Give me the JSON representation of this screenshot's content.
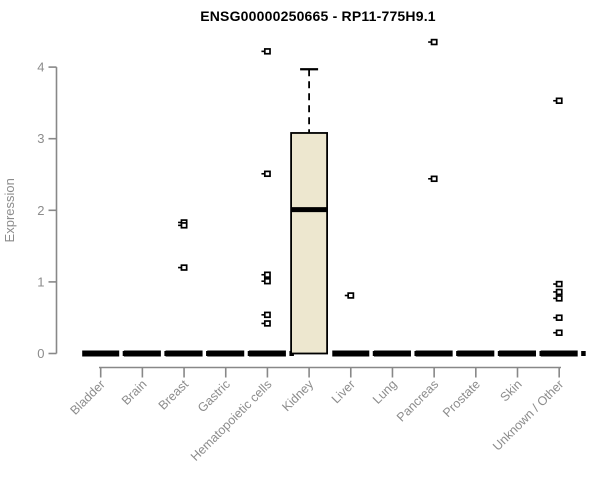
{
  "chart_data": {
    "type": "boxplot",
    "title": "ENSG00000250665 - RP11-775H9.1",
    "ylabel": "Expression",
    "xlabel": "",
    "ylim": [
      0,
      4
    ],
    "yticks": [
      0,
      1,
      2,
      3,
      4
    ],
    "grid": false,
    "legend": "none",
    "categories": [
      "Bladder",
      "Brain",
      "Breast",
      "Gastric",
      "Hematopoietic cells",
      "Kidney",
      "Liver",
      "Lung",
      "Pancreas",
      "Prostate",
      "Skin",
      "Unknown / Other"
    ],
    "boxes": [
      {
        "category": "Bladder",
        "collapsed": true,
        "median": 0
      },
      {
        "category": "Brain",
        "collapsed": true,
        "median": 0
      },
      {
        "category": "Breast",
        "collapsed": true,
        "median": 0
      },
      {
        "category": "Gastric",
        "collapsed": true,
        "median": 0
      },
      {
        "category": "Hematopoietic cells",
        "collapsed": true,
        "median": 0
      },
      {
        "category": "Kidney",
        "collapsed": false,
        "whisker_low": 0,
        "q1": 0,
        "median": 2.01,
        "q3": 3.08,
        "whisker_high": 3.97
      },
      {
        "category": "Liver",
        "collapsed": true,
        "median": 0
      },
      {
        "category": "Lung",
        "collapsed": true,
        "median": 0
      },
      {
        "category": "Pancreas",
        "collapsed": true,
        "median": 0
      },
      {
        "category": "Prostate",
        "collapsed": true,
        "median": 0
      },
      {
        "category": "Skin",
        "collapsed": true,
        "median": 0
      },
      {
        "category": "Unknown / Other",
        "collapsed": true,
        "median": 0
      }
    ],
    "outliers": [
      {
        "category": "Breast",
        "values": [
          1.83,
          1.79,
          1.2
        ]
      },
      {
        "category": "Hematopoietic cells",
        "values": [
          4.22,
          2.51,
          1.1,
          1.01,
          0.54,
          0.42
        ]
      },
      {
        "category": "Liver",
        "values": [
          0.81
        ]
      },
      {
        "category": "Pancreas",
        "values": [
          4.35,
          2.44
        ]
      },
      {
        "category": "Unknown / Other",
        "values": [
          3.53,
          0.97,
          0.86,
          0.77,
          0.5,
          0.29
        ]
      }
    ],
    "colors": {
      "box_fill": "#EDE7CF",
      "box_border": "#000000",
      "collapsed_bar": "#000000",
      "outlier_stroke": "#000000",
      "outlier_fill": "#ffffff",
      "axis_line": "#888888",
      "tick_label": "#8c8c8c",
      "axis_title": "#8c8c8c",
      "title": "#000000",
      "background": "#ffffff"
    }
  }
}
